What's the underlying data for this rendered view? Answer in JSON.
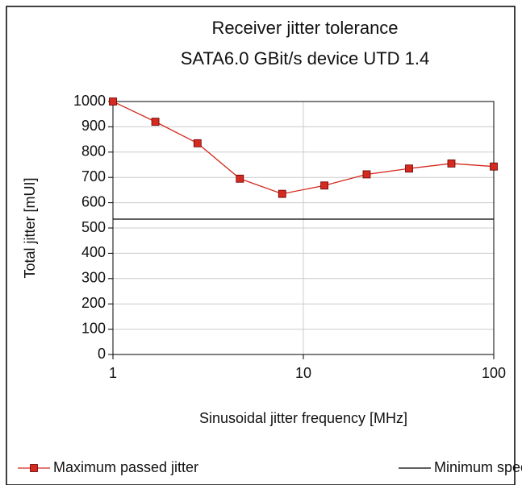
{
  "chart_data": {
    "type": "line",
    "title": "Receiver jitter tolerance",
    "subtitle": "SATA6.0 GBit/s device UTD 1.4",
    "x_label": "Sinusoidal jitter frequency [MHz]",
    "y_label": "Total jitter [mUI]",
    "x": [
      1,
      1.67,
      2.78,
      4.64,
      7.74,
      12.9,
      21.5,
      35.9,
      59.9,
      100
    ],
    "series": [
      {
        "name": "Maximum passed jitter",
        "color": "#d42a20",
        "marker": "square",
        "values": [
          1000,
          920,
          835,
          695,
          635,
          668,
          712,
          735,
          755,
          743
        ]
      },
      {
        "name": "Minimum spec",
        "color": "#000000",
        "values": [
          535,
          535,
          535,
          535,
          535,
          535,
          535,
          535,
          535,
          535
        ]
      }
    ],
    "xlim": [
      1,
      100
    ],
    "xticks": [
      1,
      10,
      100
    ],
    "x_log": true,
    "ylim": [
      0,
      1000
    ],
    "yticks": [
      0,
      100,
      200,
      300,
      400,
      500,
      600,
      700,
      800,
      900,
      1000
    ],
    "grid": true,
    "legend": "bottom"
  }
}
